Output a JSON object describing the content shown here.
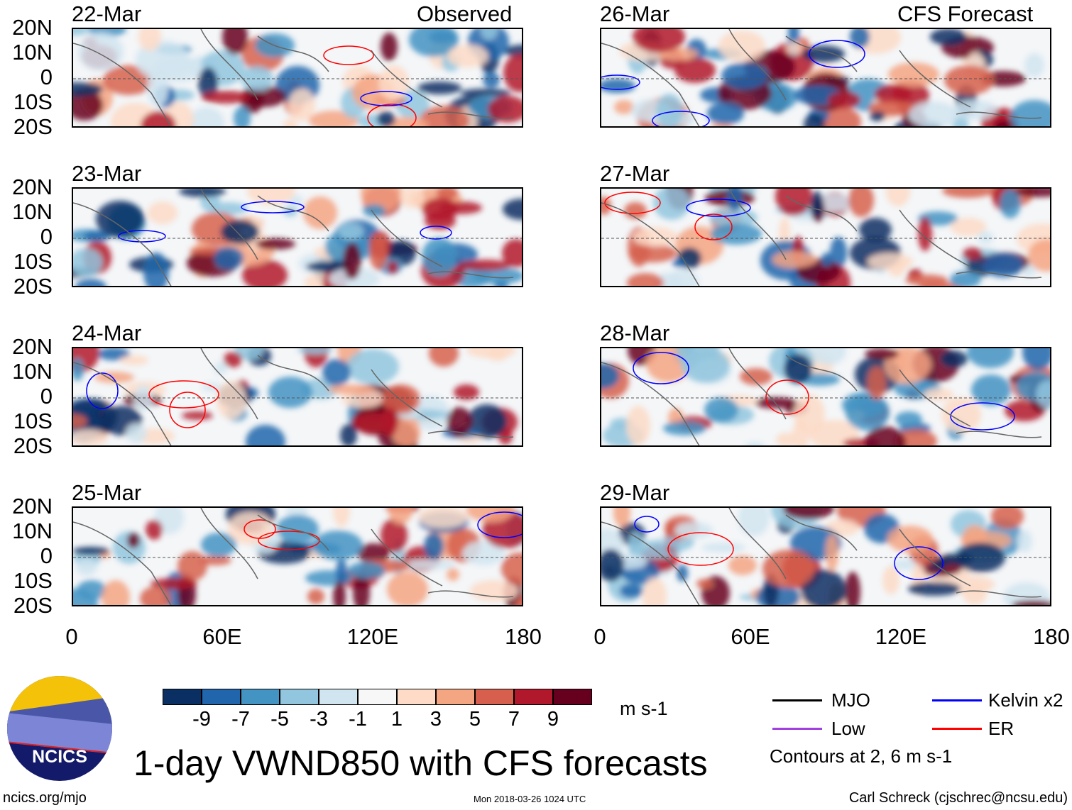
{
  "column_headers": {
    "observed": "Observed",
    "forecast": "CFS Forecast"
  },
  "panels": [
    {
      "date": "22-Mar",
      "kind": "observed"
    },
    {
      "date": "23-Mar",
      "kind": "observed"
    },
    {
      "date": "24-Mar",
      "kind": "observed"
    },
    {
      "date": "25-Mar",
      "kind": "observed"
    },
    {
      "date": "26-Mar",
      "kind": "forecast"
    },
    {
      "date": "27-Mar",
      "kind": "forecast"
    },
    {
      "date": "28-Mar",
      "kind": "forecast"
    },
    {
      "date": "29-Mar",
      "kind": "forecast"
    }
  ],
  "lat_labels": [
    "20N",
    "10N",
    "0",
    "10S",
    "20S"
  ],
  "lon_labels": [
    "0",
    "60E",
    "120E",
    "180"
  ],
  "colorbar": {
    "colors": [
      "#0a2f63",
      "#2166ac",
      "#4393c3",
      "#92c5de",
      "#d1e5f0",
      "#f7f7f7",
      "#fddbc7",
      "#f4a582",
      "#d6604d",
      "#b2182b",
      "#67001f"
    ],
    "labels": [
      "-9",
      "-7",
      "-5",
      "-3",
      "-1",
      "1",
      "3",
      "5",
      "7",
      "9"
    ],
    "units": "m s-1"
  },
  "legend": {
    "items": [
      {
        "label": "MJO",
        "color": "#000000"
      },
      {
        "label": "Kelvin x2",
        "color": "#0000ff"
      },
      {
        "label": "Low",
        "color": "#a040e0"
      },
      {
        "label": "ER",
        "color": "#ff0000"
      }
    ],
    "note": "Contours at 2, 6 m s-1"
  },
  "title": "1-day VWND850 with CFS forecasts",
  "logo_text": "NCICS",
  "footer": {
    "url": "ncics.org/mjo",
    "timestamp": "Mon 2018-03-26 1024 UTC",
    "credit": "Carl Schreck (cjschrec@ncsu.edu)"
  }
}
